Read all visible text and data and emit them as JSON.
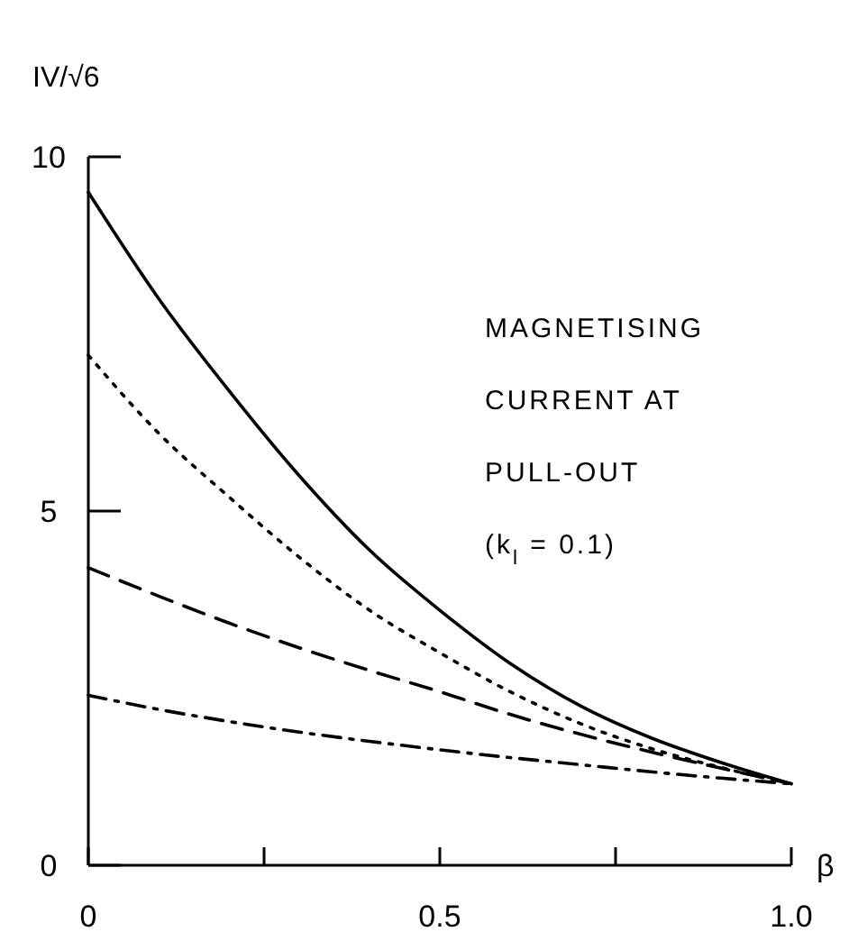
{
  "chart_data": {
    "type": "line",
    "xlabel": "β",
    "ylabel": "IV/√6",
    "annotations": [
      "MAGNETISING",
      "CURRENT AT",
      "PULL-OUT",
      "(k$_{l}$ = 0.1)"
    ],
    "xlim": [
      0,
      1
    ],
    "ylim": [
      0,
      10
    ],
    "xticks": [
      0,
      {
        "value": 0.25,
        "label": null
      },
      0.5,
      {
        "value": 0.75,
        "label": null
      },
      {
        "value": 1,
        "label": "1.0"
      }
    ],
    "yticks": [
      0,
      5,
      10
    ],
    "grid": false,
    "marker": "none",
    "series": [
      {
        "color": "#000000",
        "line_style": "solid",
        "x": [
          0,
          0.1,
          0.2,
          0.3,
          0.4,
          0.5,
          0.6,
          0.7,
          0.8,
          0.9,
          1.0
        ],
        "values": [
          9.5,
          8.0,
          6.7,
          5.5,
          4.45,
          3.6,
          2.85,
          2.25,
          1.8,
          1.45,
          1.15
        ]
      },
      {
        "color": "#000000",
        "line_style": "dotted",
        "x": [
          0,
          0.1,
          0.2,
          0.3,
          0.4,
          0.5,
          0.6,
          0.7,
          0.8,
          0.9,
          1.0
        ],
        "values": [
          7.2,
          6.1,
          5.2,
          4.35,
          3.6,
          3.0,
          2.45,
          2.0,
          1.65,
          1.38,
          1.15
        ]
      },
      {
        "color": "#000000",
        "line_style": "dashed",
        "x": [
          0,
          0.1,
          0.2,
          0.3,
          0.4,
          0.5,
          0.6,
          0.7,
          0.8,
          0.9,
          1.0
        ],
        "values": [
          4.2,
          3.8,
          3.42,
          3.07,
          2.75,
          2.45,
          2.13,
          1.85,
          1.6,
          1.37,
          1.15
        ]
      },
      {
        "color": "#000000",
        "line_style": "dashdot",
        "x": [
          0,
          0.1,
          0.2,
          0.3,
          0.4,
          0.5,
          0.6,
          0.7,
          0.8,
          0.9,
          1.0
        ],
        "values": [
          2.4,
          2.2,
          2.03,
          1.88,
          1.75,
          1.63,
          1.52,
          1.42,
          1.32,
          1.23,
          1.15
        ]
      }
    ]
  }
}
